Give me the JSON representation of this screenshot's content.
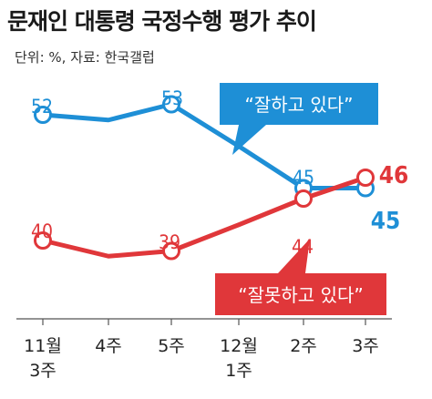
{
  "header": {
    "title": "문재인 대통령 국정수행 평가 추이",
    "source": "단위: %, 자료: 한국갤럽"
  },
  "colors": {
    "approve": "#1e8fd6",
    "disapprove": "#e0373a"
  },
  "chart_data": {
    "type": "line",
    "title": "문재인 대통령 국정수행 평가 추이",
    "units": "%",
    "source": "한국갤럽",
    "categories": [
      [
        "11월",
        "3주"
      ],
      [
        "4주"
      ],
      [
        "5주"
      ],
      [
        "12월",
        "1주"
      ],
      [
        "2주"
      ],
      [
        "3주"
      ]
    ],
    "series": [
      {
        "name": "“잘하고 있다”",
        "color": "#1e8fd6",
        "values": [
          52,
          null,
          53,
          null,
          45,
          45
        ],
        "labels": [
          "52",
          null,
          "53",
          null,
          "45",
          "45"
        ],
        "path": [
          52,
          51.5,
          53,
          49,
          45,
          45
        ]
      },
      {
        "name": "“잘못하고 있다”",
        "color": "#e0373a",
        "values": [
          40,
          null,
          39,
          null,
          44,
          46
        ],
        "labels": [
          "40",
          null,
          "39",
          null,
          "44",
          "46"
        ],
        "path": [
          40,
          38.5,
          39,
          41.5,
          44,
          46
        ]
      }
    ]
  }
}
